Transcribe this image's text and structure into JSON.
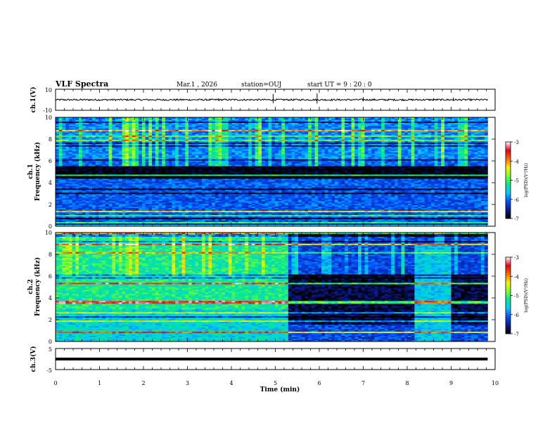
{
  "header": {
    "title": "VLF Spectra",
    "date": "Mar.1 , 2026",
    "station": "station=OUJ",
    "start": "start UT =  9 : 20 : 0"
  },
  "colorbar": {
    "label": "log(PSD)(V²/Hz)",
    "ticks": [
      "-3",
      "-4",
      "-5",
      "-6",
      "-7"
    ],
    "colors": [
      "#000000",
      "#0a1a8f",
      "#0050ff",
      "#00c8ff",
      "#00e890",
      "#7cff2a",
      "#ffef00",
      "#ff6a00",
      "#e8001a",
      "#ffffff"
    ]
  },
  "chart_data": [
    {
      "type": "line",
      "name": "ch.1 waveform",
      "ylabel": "ch.1(V)",
      "ylim": [
        -10,
        10
      ],
      "yticks": [
        "10",
        "-10"
      ],
      "xlim": [
        0,
        10
      ],
      "baseline": 0,
      "spikes": [
        [
          3.7,
          1.5
        ],
        [
          4.95,
          5.5
        ],
        [
          5.95,
          6
        ],
        [
          7.0,
          2.5
        ],
        [
          8.6,
          1.5
        ],
        [
          9.05,
          2.0
        ]
      ]
    },
    {
      "type": "heatmap",
      "name": "ch.1 spectrogram",
      "ylabel": "ch.1\nFrequency (kHz)",
      "ylim": [
        0,
        10
      ],
      "yticks": [
        "10",
        "8",
        "6",
        "4",
        "2",
        "0"
      ],
      "xlim": [
        0,
        10
      ],
      "data_end_min": 9.83,
      "zlim": [
        -7,
        -3
      ],
      "dark_band_khz": [
        4.3,
        5.5
      ]
    },
    {
      "type": "heatmap",
      "name": "ch.2 spectrogram",
      "ylabel": "ch.2\nFrequency (kHz)",
      "ylim": [
        0,
        10
      ],
      "yticks": [
        "10",
        "8",
        "6",
        "4",
        "2",
        "0"
      ],
      "xlim": [
        0,
        10
      ],
      "data_end_min": 9.83,
      "zlim": [
        -7,
        -3
      ],
      "quiet_after_min": 5.3
    },
    {
      "type": "line",
      "name": "ch.3 waveform",
      "ylabel": "ch.3(V)",
      "ylim": [
        -5,
        5
      ],
      "yticks": [
        "5",
        "-5"
      ],
      "xlim": [
        0,
        10
      ],
      "baseline": 0
    }
  ],
  "xaxis": {
    "label": "Time (min)",
    "ticks": [
      "0",
      "1",
      "2",
      "3",
      "4",
      "5",
      "6",
      "7",
      "8",
      "9",
      "10"
    ]
  }
}
